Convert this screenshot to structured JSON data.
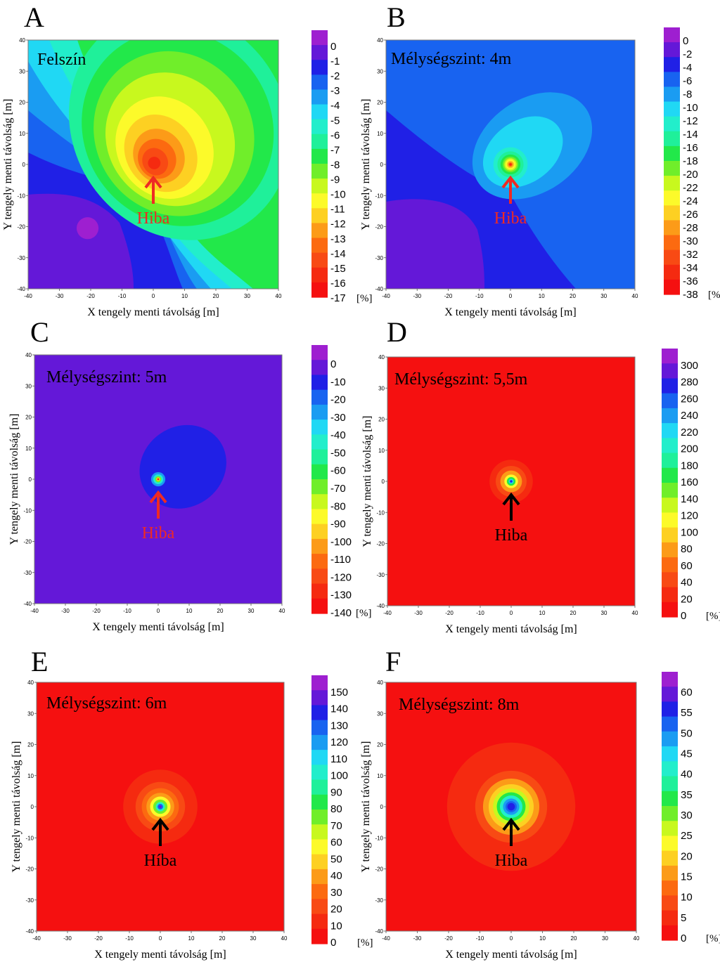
{
  "chart_data": [
    {
      "type": "heatmap",
      "panel_letter": "A",
      "plot_label": "Felszín",
      "xlabel": "X tengely menti távolság [m]",
      "ylabel": "Y tengely menti távolság [m]",
      "xlim": [
        -40,
        40
      ],
      "ylim": [
        -40,
        40
      ],
      "x_ticks": [
        "-40",
        "-30",
        "-20",
        "-10",
        "0",
        "10",
        "20",
        "30",
        "40"
      ],
      "y_ticks": [
        "40",
        "30",
        "20",
        "10",
        "0",
        "-10",
        "-20",
        "-30",
        "-40"
      ],
      "colorbar_ticks": [
        "0",
        "-1",
        "-2",
        "-3",
        "-4",
        "-5",
        "-6",
        "-7",
        "-8",
        "-9",
        "-10",
        "-11",
        "-12",
        "-13",
        "-14",
        "-15",
        "-16",
        "-17"
      ],
      "colorbar_unit": "[%]",
      "annotation": {
        "text": "Hiba",
        "x": 0,
        "y": 0,
        "color": "#ee2a24"
      },
      "colors": [
        "#9e1fd0",
        "#6418d8",
        "#2020e6",
        "#1863f0",
        "#1a9cf2",
        "#20d8f4",
        "#22eecb",
        "#1ff09a",
        "#22e84a",
        "#70ee2a",
        "#c8f81e",
        "#fcfa2a",
        "#fdd022",
        "#fc9b18",
        "#fc6a10",
        "#f84a14",
        "#f52a10",
        "#f51010"
      ]
    },
    {
      "type": "heatmap",
      "panel_letter": "B",
      "plot_label": "Mélységszint: 4m",
      "xlabel": "X tengely menti távolság [m]",
      "ylabel": "Y tengely menti távolság [m]",
      "xlim": [
        -40,
        40
      ],
      "ylim": [
        -40,
        40
      ],
      "x_ticks": [
        "-40",
        "-30",
        "-20",
        "-10",
        "0",
        "10",
        "20",
        "30",
        "40"
      ],
      "y_ticks": [
        "40",
        "30",
        "20",
        "10",
        "0",
        "-10",
        "-20",
        "-30",
        "-40"
      ],
      "colorbar_ticks": [
        "0",
        "-2",
        "-4",
        "-6",
        "-8",
        "-10",
        "-12",
        "-14",
        "-16",
        "-18",
        "-20",
        "-22",
        "-24",
        "-26",
        "-28",
        "-30",
        "-32",
        "-34",
        "-36",
        "-38"
      ],
      "colorbar_unit": "[%]",
      "annotation": {
        "text": "Hiba",
        "x": 0,
        "y": 0,
        "color": "#ee2a24"
      },
      "colors": [
        "#9e1fd0",
        "#6418d8",
        "#2020e6",
        "#1863f0",
        "#1a9cf2",
        "#20d8f4",
        "#22eecb",
        "#1ff09a",
        "#22e84a",
        "#70ee2a",
        "#c8f81e",
        "#fcfa2a",
        "#fdd022",
        "#fc9b18",
        "#fc6a10",
        "#f84a14",
        "#f52a10",
        "#f51010"
      ]
    },
    {
      "type": "heatmap",
      "panel_letter": "C",
      "plot_label": "Mélységszint: 5m",
      "xlabel": "X tengely menti távolság [m]",
      "ylabel": "Y tengely menti távolság [m]",
      "xlim": [
        -40,
        40
      ],
      "ylim": [
        -40,
        40
      ],
      "x_ticks": [
        "-40",
        "-30",
        "-20",
        "-10",
        "0",
        "10",
        "20",
        "30",
        "40"
      ],
      "y_ticks": [
        "40",
        "30",
        "20",
        "10",
        "0",
        "-10",
        "-20",
        "-30",
        "-40"
      ],
      "colorbar_ticks": [
        "0",
        "-10",
        "-20",
        "-30",
        "-40",
        "-50",
        "-60",
        "-70",
        "-80",
        "-90",
        "-100",
        "-110",
        "-120",
        "-130",
        "-140"
      ],
      "colorbar_unit": "[%]",
      "annotation": {
        "text": "Hiba",
        "x": 0,
        "y": 0,
        "color": "#ee2a24"
      },
      "colors": [
        "#9e1fd0",
        "#6418d8",
        "#2020e6",
        "#1863f0",
        "#1a9cf2",
        "#20d8f4",
        "#22eecb",
        "#1ff09a",
        "#22e84a",
        "#70ee2a",
        "#c8f81e",
        "#fcfa2a",
        "#fdd022",
        "#fc9b18",
        "#fc6a10",
        "#f84a14",
        "#f52a10",
        "#f51010"
      ]
    },
    {
      "type": "heatmap",
      "panel_letter": "D",
      "plot_label": "Mélységszint: 5,5m",
      "xlabel": "X tengely menti távolság [m]",
      "ylabel": "Y tengely menti távolság [m]",
      "xlim": [
        -40,
        40
      ],
      "ylim": [
        -40,
        40
      ],
      "x_ticks": [
        "-40",
        "-30",
        "-20",
        "-10",
        "0",
        "10",
        "20",
        "30",
        "40"
      ],
      "y_ticks": [
        "40",
        "30",
        "20",
        "10",
        "0",
        "-10",
        "-20",
        "-30",
        "-40"
      ],
      "colorbar_ticks": [
        "300",
        "280",
        "260",
        "240",
        "220",
        "200",
        "180",
        "160",
        "140",
        "120",
        "100",
        "80",
        "60",
        "40",
        "20",
        "0"
      ],
      "colorbar_unit": "[%]",
      "annotation": {
        "text": "Hiba",
        "x": 0,
        "y": 0,
        "color": "#000000"
      },
      "colors": [
        "#9e1fd0",
        "#6418d8",
        "#2020e6",
        "#1863f0",
        "#1a9cf2",
        "#20d8f4",
        "#22eecb",
        "#1ff09a",
        "#22e84a",
        "#70ee2a",
        "#c8f81e",
        "#fcfa2a",
        "#fdd022",
        "#fc9b18",
        "#fc6a10",
        "#f84a14",
        "#f52a10",
        "#f51010"
      ]
    },
    {
      "type": "heatmap",
      "panel_letter": "E",
      "plot_label": "Mélységszint: 6m",
      "xlabel": "X tengely menti távolság [m]",
      "ylabel": "Y tengely menti távolság [m]",
      "xlim": [
        -40,
        40
      ],
      "ylim": [
        -40,
        40
      ],
      "x_ticks": [
        "-40",
        "-30",
        "-20",
        "-10",
        "0",
        "10",
        "20",
        "30",
        "40"
      ],
      "y_ticks": [
        "40",
        "30",
        "20",
        "10",
        "0",
        "-10",
        "-20",
        "-30",
        "-40"
      ],
      "colorbar_ticks": [
        "150",
        "140",
        "130",
        "120",
        "110",
        "100",
        "90",
        "80",
        "70",
        "60",
        "50",
        "40",
        "30",
        "20",
        "10",
        "0"
      ],
      "colorbar_unit": "[%]",
      "annotation": {
        "text": "Híba",
        "x": 0,
        "y": 0,
        "color": "#000000"
      },
      "colors": [
        "#9e1fd0",
        "#6418d8",
        "#2020e6",
        "#1863f0",
        "#1a9cf2",
        "#20d8f4",
        "#22eecb",
        "#1ff09a",
        "#22e84a",
        "#70ee2a",
        "#c8f81e",
        "#fcfa2a",
        "#fdd022",
        "#fc9b18",
        "#fc6a10",
        "#f84a14",
        "#f52a10",
        "#f51010"
      ]
    },
    {
      "type": "heatmap",
      "panel_letter": "F",
      "plot_label": "Mélységszint: 8m",
      "xlabel": "X tengely menti távolság [m]",
      "ylabel": "Y tengely menti távolság [m]",
      "xlim": [
        -40,
        40
      ],
      "ylim": [
        -40,
        40
      ],
      "x_ticks": [
        "-40",
        "-30",
        "-20",
        "-10",
        "0",
        "10",
        "20",
        "30",
        "40"
      ],
      "y_ticks": [
        "40",
        "30",
        "20",
        "10",
        "0",
        "-10",
        "-20",
        "-30",
        "-40"
      ],
      "colorbar_ticks": [
        "60",
        "55",
        "50",
        "45",
        "40",
        "35",
        "30",
        "25",
        "20",
        "15",
        "10",
        "5",
        "0"
      ],
      "colorbar_unit": "[%]",
      "annotation": {
        "text": "Hiba",
        "x": 0,
        "y": 0,
        "color": "#000000"
      },
      "colors": [
        "#9e1fd0",
        "#6418d8",
        "#2020e6",
        "#1863f0",
        "#1a9cf2",
        "#20d8f4",
        "#22eecb",
        "#1ff09a",
        "#22e84a",
        "#70ee2a",
        "#c8f81e",
        "#fcfa2a",
        "#fdd022",
        "#fc9b18",
        "#fc6a10",
        "#f84a14",
        "#f52a10",
        "#f51010"
      ]
    }
  ]
}
